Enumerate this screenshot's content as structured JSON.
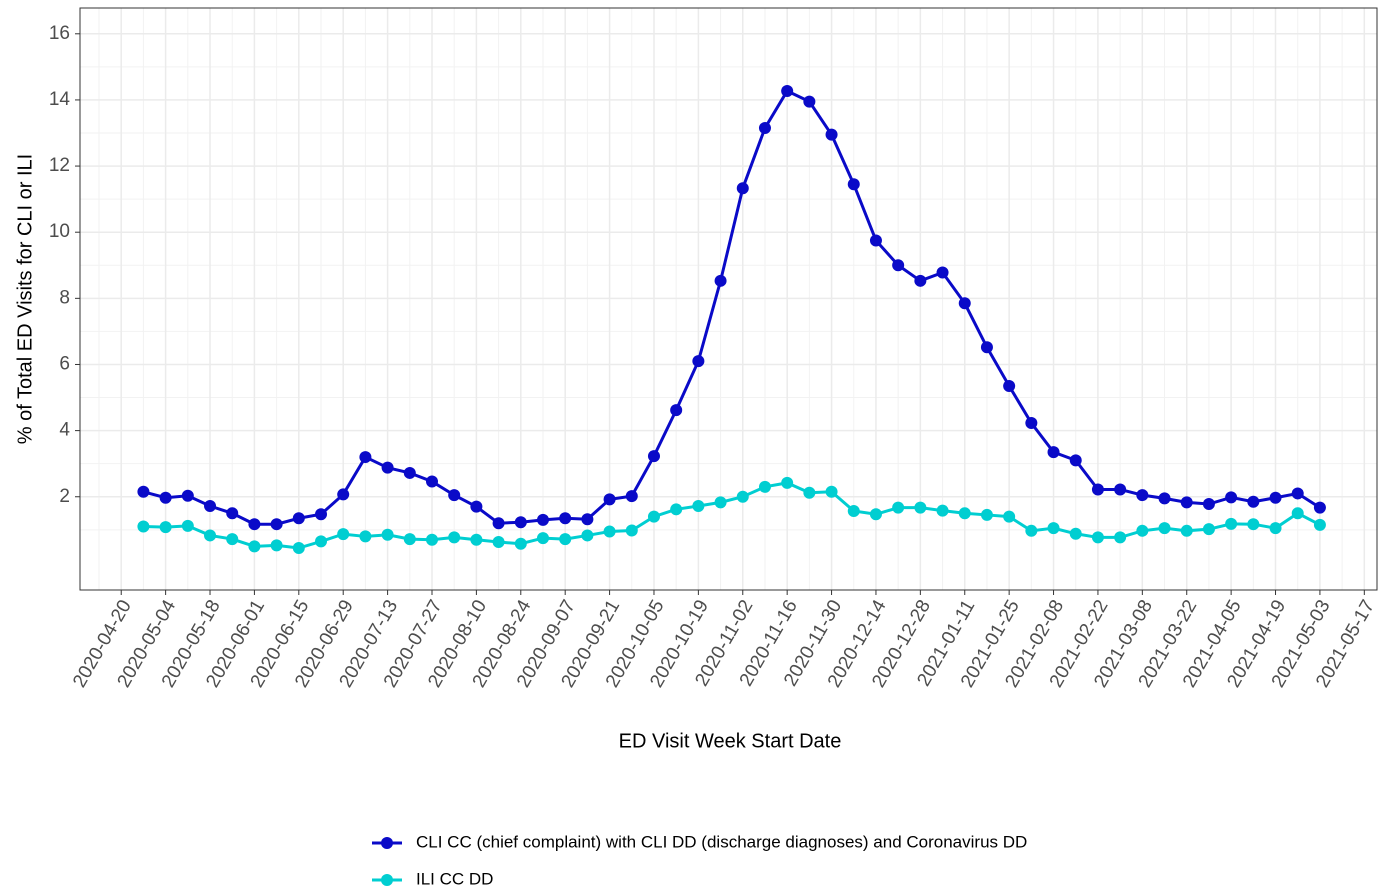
{
  "chart_data": {
    "type": "line",
    "x_label": "ED Visit Week Start Date",
    "y_label": "% of Total ED Visits for CLI or ILI",
    "x": [
      "2020-04-27",
      "2020-05-04",
      "2020-05-11",
      "2020-05-18",
      "2020-05-25",
      "2020-06-01",
      "2020-06-08",
      "2020-06-15",
      "2020-06-22",
      "2020-06-29",
      "2020-07-06",
      "2020-07-13",
      "2020-07-20",
      "2020-07-27",
      "2020-08-03",
      "2020-08-10",
      "2020-08-17",
      "2020-08-24",
      "2020-08-31",
      "2020-09-07",
      "2020-09-14",
      "2020-09-21",
      "2020-09-28",
      "2020-10-05",
      "2020-10-12",
      "2020-10-19",
      "2020-10-26",
      "2020-11-02",
      "2020-11-09",
      "2020-11-16",
      "2020-11-23",
      "2020-11-30",
      "2020-12-07",
      "2020-12-14",
      "2020-12-21",
      "2020-12-28",
      "2021-01-04",
      "2021-01-11",
      "2021-01-18",
      "2021-01-25",
      "2021-02-01",
      "2021-02-08",
      "2021-02-15",
      "2021-02-22",
      "2021-03-01",
      "2021-03-08",
      "2021-03-15",
      "2021-03-22",
      "2021-03-29",
      "2021-04-05",
      "2021-04-12",
      "2021-04-19",
      "2021-04-26",
      "2021-05-03"
    ],
    "series": [
      {
        "name": "CLI CC (chief complaint) with CLI DD (discharge diagnoses) and Coronavirus DD",
        "color": "#0a0ac8",
        "values": [
          2.15,
          1.97,
          2.03,
          1.72,
          1.5,
          1.17,
          1.17,
          1.35,
          1.47,
          2.07,
          3.2,
          2.88,
          2.72,
          2.46,
          2.05,
          1.7,
          1.2,
          1.23,
          1.3,
          1.35,
          1.32,
          1.92,
          2.02,
          3.23,
          4.62,
          6.1,
          8.53,
          11.33,
          13.15,
          14.27,
          13.95,
          12.95,
          11.45,
          9.75,
          9.0,
          8.53,
          8.78,
          7.85,
          6.52,
          5.35,
          4.23,
          3.35,
          3.1,
          2.22,
          2.22,
          2.05,
          1.95,
          1.83,
          1.78,
          1.98,
          1.85,
          1.97,
          2.1,
          1.67
        ]
      },
      {
        "name": "ILI CC DD",
        "color": "#00ced1",
        "values": [
          1.1,
          1.08,
          1.12,
          0.83,
          0.72,
          0.5,
          0.53,
          0.45,
          0.65,
          0.87,
          0.8,
          0.85,
          0.72,
          0.7,
          0.77,
          0.7,
          0.63,
          0.58,
          0.75,
          0.72,
          0.83,
          0.95,
          0.98,
          1.4,
          1.62,
          1.72,
          1.83,
          2.0,
          2.3,
          2.42,
          2.12,
          2.15,
          1.57,
          1.47,
          1.67,
          1.67,
          1.58,
          1.5,
          1.45,
          1.4,
          0.97,
          1.05,
          0.88,
          0.77,
          0.77,
          0.97,
          1.05,
          0.97,
          1.02,
          1.18,
          1.17,
          1.05,
          1.5,
          1.15
        ]
      }
    ],
    "xlim": [
      "2020-04-07",
      "2021-05-21"
    ],
    "xticks": [
      "2020-04-20",
      "2020-05-04",
      "2020-05-18",
      "2020-06-01",
      "2020-06-15",
      "2020-06-29",
      "2020-07-13",
      "2020-07-27",
      "2020-08-10",
      "2020-08-24",
      "2020-09-07",
      "2020-09-21",
      "2020-10-05",
      "2020-10-19",
      "2020-11-02",
      "2020-11-16",
      "2020-11-30",
      "2020-12-14",
      "2020-12-28",
      "2021-01-11",
      "2021-01-25",
      "2021-02-08",
      "2021-02-22",
      "2021-03-08",
      "2021-03-22",
      "2021-04-05",
      "2021-04-19",
      "2021-05-03",
      "2021-05-17"
    ],
    "ylim": [
      -0.82,
      16.78
    ],
    "yticks": [
      2,
      4,
      6,
      8,
      10,
      12,
      14,
      16
    ],
    "grid": true,
    "legend": "bottom"
  }
}
